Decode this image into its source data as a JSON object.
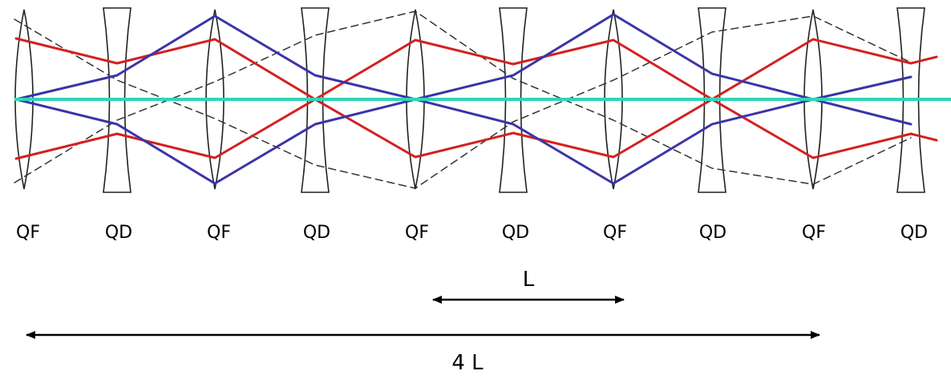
{
  "lens_labels": [
    "QF",
    "QD",
    "QF",
    "QD",
    "QF",
    "QD",
    "QF",
    "QD",
    "QF",
    "QD"
  ],
  "lens_types": [
    "focusing",
    "defocusing",
    "focusing",
    "defocusing",
    "focusing",
    "defocusing",
    "focusing",
    "defocusing",
    "focusing",
    "defocusing"
  ],
  "dimension_labels": {
    "short": "L",
    "long": "4 L"
  },
  "colors": {
    "axis": "#2fd5b8",
    "red_ray": "#d42020",
    "blue_ray": "#3a34a8",
    "dashed_ray": "#333333",
    "lens_outline": "#222222"
  }
}
